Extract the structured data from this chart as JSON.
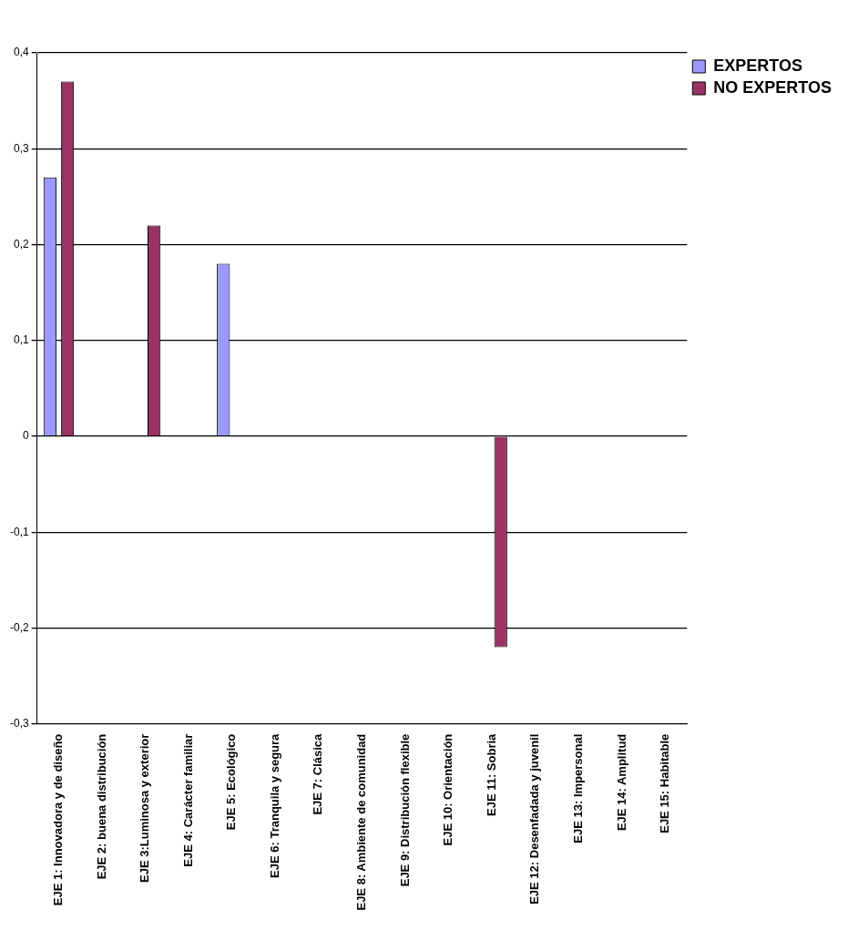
{
  "chart_data": {
    "type": "bar",
    "categories": [
      "EJE 1: Innovadora y de diseño",
      "EJE 2: buena distribución",
      "EJE 3:Luminosa y exterior",
      "EJE 4: Carácter familiar",
      "EJE 5: Ecológico",
      "EJE 6: Tranquila y segura",
      "EJE 7: Clásica",
      "EJE 8: Ambiente de comunidad",
      "EJE 9: Distribución flexible",
      "EJE 10: Orientación",
      "EJE 11: Sobria",
      "EJE 12: Desenfadada y juvenil",
      "EJE 13: Impersonal",
      "EJE 14: Amplitud",
      "EJE 15: Habitable"
    ],
    "series": [
      {
        "name": "EXPERTOS",
        "color": "#9999ff",
        "values": [
          0.27,
          0,
          0,
          0,
          0.18,
          0,
          0,
          0,
          0,
          0,
          0,
          0,
          0,
          0,
          0
        ]
      },
      {
        "name": "NO EXPERTOS",
        "color": "#993366",
        "values": [
          0.37,
          0,
          0.22,
          0,
          0,
          0,
          0,
          0,
          0,
          0,
          -0.22,
          0,
          0,
          0,
          0
        ]
      }
    ],
    "ylim": [
      -0.3,
      0.4
    ],
    "yticks": [
      {
        "value": -0.3,
        "label": "-0,3"
      },
      {
        "value": -0.2,
        "label": "-0,2"
      },
      {
        "value": -0.1,
        "label": "-0,1"
      },
      {
        "value": 0,
        "label": "0"
      },
      {
        "value": 0.1,
        "label": "0,1"
      },
      {
        "value": 0.2,
        "label": "0,2"
      },
      {
        "value": 0.3,
        "label": "0,3"
      },
      {
        "value": 0.4,
        "label": "0,4"
      }
    ],
    "grid": "y",
    "legend": "top right"
  }
}
